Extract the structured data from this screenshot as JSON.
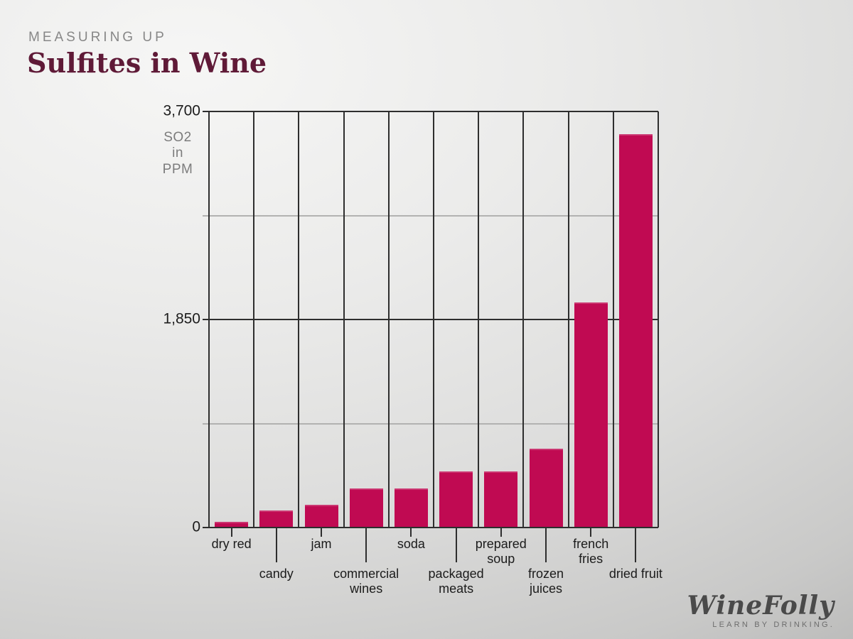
{
  "header": {
    "kicker": "MEASURING UP",
    "title": "Sulfites in Wine"
  },
  "chart_data": {
    "type": "bar",
    "title": "Sulfites in Wine",
    "kicker": "MEASURING UP",
    "categories": [
      "dry red",
      "candy",
      "jam",
      "commercial\nwines",
      "soda",
      "packaged\nmeats",
      "prepared\nsoup",
      "frozen\njuices",
      "french\nfries",
      "dried fruit"
    ],
    "values": [
      50,
      150,
      200,
      350,
      350,
      500,
      500,
      700,
      2000,
      3500
    ],
    "xlabel": "",
    "ylabel": "SO2\nin\nPPM",
    "unit": "PPM",
    "ylim": [
      0,
      3700
    ],
    "yticks": [
      {
        "value": 3700,
        "label": "3,700"
      },
      {
        "value": 1850,
        "label": "1,850"
      },
      {
        "value": 0,
        "label": "0"
      }
    ],
    "minor_gridlines": [
      2775,
      925
    ],
    "grid": "on",
    "legend": "none",
    "bar_color": "#c00a52"
  },
  "footer": {
    "logo_text": "WineFolly",
    "tagline": "LEARN BY DRINKING."
  }
}
